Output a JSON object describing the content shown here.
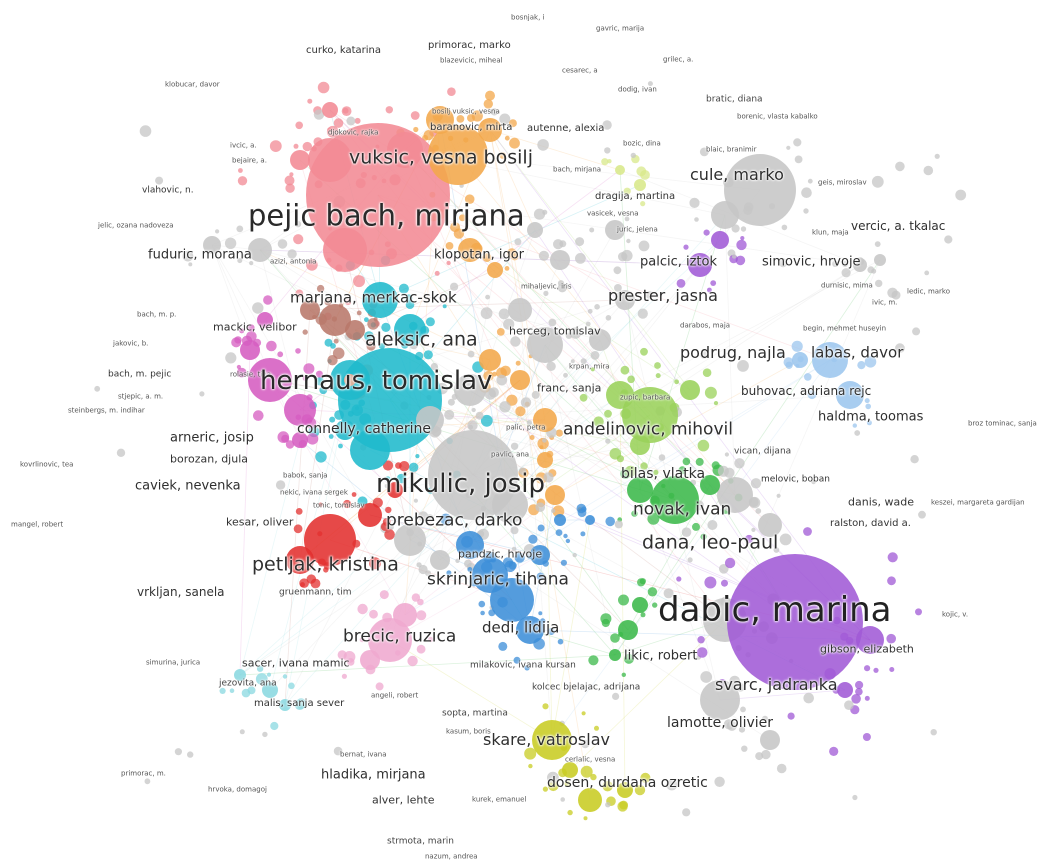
{
  "network": {
    "clusters": [
      {
        "id": "pink",
        "color": "#f28a94"
      },
      {
        "id": "orange",
        "color": "#f3a74a"
      },
      {
        "id": "teal",
        "color": "#1fb9cc"
      },
      {
        "id": "gray",
        "color": "#c6c6c6"
      },
      {
        "id": "purple",
        "color": "#a05ad6"
      },
      {
        "id": "green",
        "color": "#3bb84a"
      },
      {
        "id": "lightgreen",
        "color": "#9ad25a"
      },
      {
        "id": "blue",
        "color": "#3c8ed8"
      },
      {
        "id": "red",
        "color": "#e3302f"
      },
      {
        "id": "lightblue",
        "color": "#9cc6ee"
      },
      {
        "id": "yellowgreen",
        "color": "#c8cc22"
      },
      {
        "id": "magenta",
        "color": "#d55cc0"
      },
      {
        "id": "brown",
        "color": "#b8776a"
      },
      {
        "id": "lightpink",
        "color": "#efa8cf"
      },
      {
        "id": "lightcyan",
        "color": "#8ad8e0"
      },
      {
        "id": "salmon",
        "color": "#f4a98c"
      },
      {
        "id": "lime",
        "color": "#d8e88a"
      }
    ],
    "labels": {
      "bosnjak_i": "bosnjak, i",
      "gavric_marija": "gavric, marija",
      "curko_katarina": "curko, katarina",
      "primorac_marko": "primorac, marko",
      "blazeviic_miheal": "blazevicic, miheal",
      "grilec_a": "grilec, a.",
      "cesarec_a": "cesarec, a",
      "klobucar_davor": "klobucar, davor",
      "dodig_ivan": "dodig, ivan",
      "bratic_diana": "bratic, diana",
      "bosilj_vuksic_vesna": "bosilj vuksic, vesna",
      "baranovic_mirta": "baranovic, mirta",
      "autenne_alexia": "autenne, alexia",
      "borenic_vlasta": "borenic, vlasta kabalko",
      "djokovic_rajka": "djokovic, rajka",
      "ivcic_a": "ivcic, a.",
      "bejaire_a": "bejaire, a.",
      "bozic_dina": "bozic, dina",
      "blaic_branimir": "blaic, branimir",
      "vuksic_vesna_bosilj": "vuksic, vesna bosilj",
      "cule_marko": "cule, marko",
      "bach_mirjana": "bach, mirjana",
      "geis_miroslav": "geis, miroslav",
      "vlahovic_n": "vlahovic, n.",
      "dragija_martina": "dragija, martina",
      "pejic_bach_mirjana": "pejic bach, mirjana",
      "vasicek_vesna": "vasicek, vesna",
      "vercic_a_tkalac": "vercic, a. tkalac",
      "jelic_ozana": "jelic, ozana nadoveza",
      "juric_jelena": "juric, jelena",
      "klun_maja": "klun, maja",
      "fuduric_morana": "fuduric, morana",
      "klopotan_igor": "klopotan, igor",
      "palcic_iztok": "palcic, iztok",
      "simovic_hrvoje": "simovic, hrvoje",
      "azizi_antonia": "azizi, antonia",
      "ivic_m": "ivic, m.",
      "mihaljevic_iris": "mihaljevic, iris",
      "durnisic_mima": "durnisic, mima",
      "ledic_marko": "ledic, marko",
      "prester_jasna": "prester, jasna",
      "marjana_merkac_skok": "marjana, merkac-skok",
      "bach_m_p": "bach, m. p.",
      "mackic_velibor": "mackic, velibor",
      "darabos_maja": "darabos, maja",
      "begin_huseyin": "begin, mehmet huseyin",
      "aleksic_ana": "aleksic, ana",
      "jakovic_b": "jakovic, b.",
      "herceg_tomislav": "herceg, tomislav",
      "podrug_najla": "podrug, najla",
      "labas_davor": "labas, davor",
      "krpan_mira": "krpan, mira",
      "bach_m_pejic": "bach, m. pejic",
      "rolasie_tina": "rolasie, tina",
      "hernaus_tomislav": "hernaus, tomislav",
      "franc_sanja": "franc, sanja",
      "buhovac_adriana": "buhovac, adriana rejc",
      "stjepic_a_m": "stjepic, a. m.",
      "steinbergs_indihar": "steinbergs, m. indihar",
      "zupic_barbara": "zupic, barbara",
      "haldma_toomas": "haldma, toomas",
      "connelly_catherine": "connelly, catherine",
      "palic_petra": "palic, petra",
      "andelinovic_mihovil": "andelinovic, mihovil",
      "arneric_josip": "arneric, josip",
      "broz_tominac": "broz tominac, sanja",
      "borozan_djula": "borozan, djula",
      "pavlic_ana": "pavlic, ana",
      "vican_dijana": "vican, dijana",
      "kovrlinovic_tea": "kovrlinovic, tea",
      "mikulic_josip": "mikulic, josip",
      "bilas_vlatka": "bilas, vlatka",
      "babok_sanja": "babok, sanja",
      "melovic_boban": "melovic, boban",
      "caviek_nevenka": "caviek, nevenka",
      "nekic_ivana": "nekic, ivana sergek",
      "danis_wade": "danis, wade",
      "keszei_margareta": "keszei, margareta gardijan",
      "novak_ivan": "novak, ivan",
      "mangel_robert": "mangel, robert",
      "kesar_oliver": "kesar, oliver",
      "ralston_david": "ralston, david a.",
      "prebezac_darko": "prebezac, darko",
      "tonic_tomislav": "tonic, tomislav",
      "dana_leo_paul": "dana, leo-paul",
      "pandzic_hrvoje": "pandzic, hrvoje",
      "petljak_kristina": "petljak, kristina",
      "dabic_marina": "dabic, marina",
      "skrinjaric_tihana": "skrinjaric, tihana",
      "vrkljan_sanela": "vrkljan, sanela",
      "gruenmann_tim": "gruenmann, tim",
      "kojic_v": "kojic, v.",
      "brecic_ruzica": "brecic, ruzica",
      "dedi_lidija": "dedi, lidija",
      "likic_robert": "likic, robert",
      "gibson_elizabeth": "gibson, elizabeth",
      "sacer_ivana": "sacer, ivana mamic",
      "milakovic_ivana": "milakovic, ivana kursan",
      "simunina_jurica": "simurina, jurica",
      "svarc_jadranka": "svarc, jadranka",
      "jezovita_ana": "jezovita, ana",
      "kolcec_bjelajac": "kolcec bjelajac, adrijana",
      "malis_sanja": "malis, sanja sever",
      "angeli_robert": "angeli, robert",
      "lamotte_olivier": "lamotte, olivier",
      "sopta_martina": "sopta, martina",
      "kasum_boris": "kasum, boris",
      "skare_vatroslav": "skare, vatroslav",
      "bernat_ivana": "bernat, ivana",
      "cerlalic_vesna": "cerlalic, vesna",
      "primorac_m": "primorac, m.",
      "hladika_mirjana": "hladika, mirjana",
      "dosen_durdana": "dosen, durdana ozretic",
      "hrvoka_domagoj": "hrvoka, domagoj",
      "kurek_emanuel": "kurek, emanuel",
      "alver_lehte": "alver, lehte",
      "strmota_marin": "strmota, marin",
      "pozum_andrea": "nazum, andrea"
    }
  }
}
